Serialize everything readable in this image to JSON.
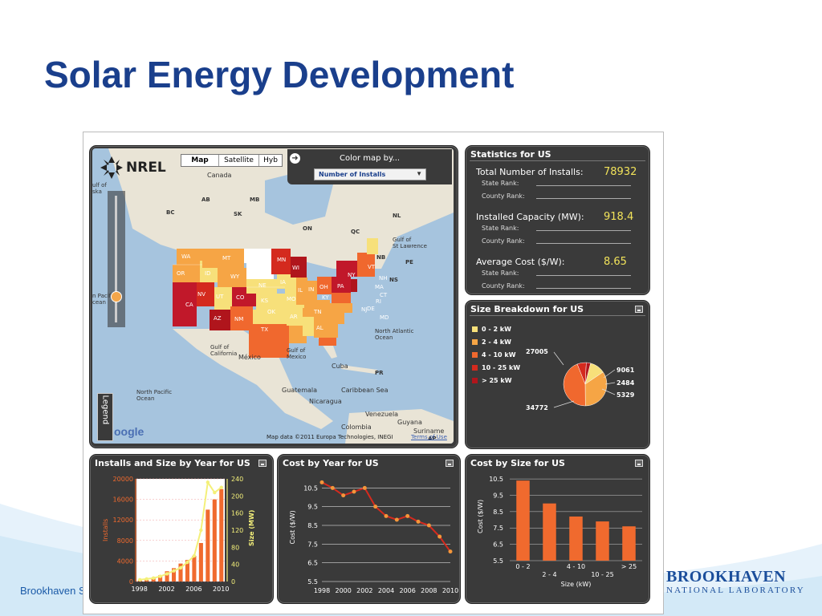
{
  "slide": {
    "title": "Solar Energy Development",
    "footer_left": "Brookhaven S",
    "logo_line1": "BROOKHAVEN",
    "logo_line2": "NATIONAL LABORATORY"
  },
  "map": {
    "tabs": [
      "Map",
      "Satellite",
      "Hyb"
    ],
    "active_tab": "Map",
    "color_by_label": "Color map by...",
    "color_by_value": "Number of Installs",
    "nrel_label": "NREL",
    "legend_label": "Legend",
    "google_label": "oogle",
    "copyright": "Map data ©2011  Europa Technologies, INEGI",
    "terms": "Terms of Use",
    "place_labels": [
      "Canada",
      "AB",
      "MB",
      "BC",
      "SK",
      "ON",
      "QC",
      "NL",
      "NB",
      "PE",
      "NS",
      "Gulf of St Lawrence",
      "North Atlantic Ocean",
      "Gulf of California",
      "México",
      "Gulf of Mexico",
      "Cuba",
      "PR",
      "Guatemala",
      "Caribbean Sea",
      "Nicaragua",
      "North Pacific Ocean",
      "Venezuela",
      "Guyana",
      "Colombia",
      "Suriname",
      "AP",
      "n Pacific cean",
      "ulf of ska"
    ],
    "state_labels": [
      "WA",
      "MT",
      "ND",
      "MN",
      "OR",
      "ID",
      "WY",
      "SD",
      "WI",
      "NV",
      "UT",
      "CO",
      "NE",
      "IA",
      "CA",
      "AZ",
      "NM",
      "KS",
      "MO",
      "OK",
      "TX",
      "AR",
      "AL",
      "IL",
      "IN",
      "OH",
      "PA",
      "NY",
      "VT",
      "NH",
      "MA",
      "CT",
      "RI",
      "NJ",
      "DE",
      "MD",
      "TN",
      "KY"
    ]
  },
  "statistics": {
    "title": "Statistics for US",
    "rows": [
      {
        "label": "Total Number of Installs:",
        "value": "78932",
        "sub1": "State Rank:",
        "sub2": "County Rank:"
      },
      {
        "label": "Installed Capacity (MW):",
        "value": "918.4",
        "sub1": "State Rank:",
        "sub2": "County Rank:"
      },
      {
        "label": "Average Cost ($/W):",
        "value": "8.65",
        "sub1": "State Rank:",
        "sub2": "County Rank:"
      }
    ]
  },
  "size_breakdown": {
    "title": "Size Breakdown for US",
    "legend": [
      {
        "label": "0 - 2 kW",
        "color": "#f7e07a"
      },
      {
        "label": "2 - 4 kW",
        "color": "#f6a545"
      },
      {
        "label": "4 - 10 kW",
        "color": "#f0682e"
      },
      {
        "label": "10 - 25 kW",
        "color": "#d42a1e"
      },
      {
        "label": "> 25 kW",
        "color": "#b0151c"
      }
    ],
    "labels": [
      "27005",
      "9061",
      "2484",
      "5329",
      "34772"
    ]
  },
  "colors": {
    "title": "#1a3f8c",
    "panel": "#3a3a3a",
    "value_yellow": "#f2e35a",
    "bar_orange": "#f06a2e",
    "line_yellow": "#f4f07a"
  },
  "chart_data": [
    {
      "id": "installs-size-by-year",
      "type": "bar",
      "title": "Installs and Size by Year for  US",
      "ylabel": "Installs",
      "y2label": "Size (MW)",
      "x_ticks": [
        "1998",
        "2002",
        "2006",
        "2010"
      ],
      "y_ticks": [
        "0",
        "4000",
        "8000",
        "12000",
        "16000",
        "20000"
      ],
      "y2_ticks": [
        "0",
        "40",
        "80",
        "120",
        "160",
        "200",
        "240"
      ],
      "ylim": [
        0,
        20000
      ],
      "y2lim": [
        0,
        240
      ],
      "categories": [
        "1998",
        "1999",
        "2000",
        "2001",
        "2002",
        "2003",
        "2004",
        "2005",
        "2006",
        "2007",
        "2008",
        "2009",
        "2010"
      ],
      "series": [
        {
          "name": "Installs",
          "type": "bar",
          "values": [
            200,
            300,
            600,
            1200,
            2000,
            2600,
            3500,
            4200,
            5000,
            7500,
            14000,
            16000,
            18000
          ]
        },
        {
          "name": "Size (MW)",
          "type": "line",
          "axis": "y2",
          "values": [
            4,
            6,
            8,
            12,
            18,
            25,
            32,
            45,
            60,
            120,
            232,
            208,
            220
          ]
        }
      ]
    },
    {
      "id": "cost-by-year",
      "type": "line",
      "title": "Cost by Year for US",
      "ylabel": "Cost ($/W)",
      "x": [
        "1998",
        "1999",
        "2000",
        "2001",
        "2002",
        "2003",
        "2004",
        "2005",
        "2006",
        "2007",
        "2008",
        "2009",
        "2010"
      ],
      "x_ticks": [
        "1998",
        "2000",
        "2002",
        "2004",
        "2006",
        "2008",
        "2010"
      ],
      "y_ticks": [
        "5.5",
        "6.5",
        "7.5",
        "8.5",
        "9.5",
        "10.5"
      ],
      "ylim": [
        5.5,
        11.2
      ],
      "values": [
        10.8,
        10.5,
        10.1,
        10.3,
        10.5,
        9.5,
        9.0,
        8.8,
        9.0,
        8.7,
        8.5,
        7.9,
        7.1
      ]
    },
    {
      "id": "cost-by-size",
      "type": "bar",
      "title": "Cost by Size for US",
      "ylabel": "Cost ($/W)",
      "xlabel": "Size (kW)",
      "categories": [
        "0 - 2",
        "2 - 4",
        "4 - 10",
        "10 - 25",
        "> 25"
      ],
      "y_ticks": [
        "5.5",
        "6.5",
        "7.5",
        "8.5",
        "9.5",
        "10.5"
      ],
      "ylim": [
        5.5,
        10.8
      ],
      "values": [
        10.4,
        9.0,
        8.2,
        7.9,
        7.6
      ]
    },
    {
      "id": "size-breakdown-pie",
      "type": "pie",
      "categories": [
        "0 - 2 kW",
        "2 - 4 kW",
        "4 - 10 kW",
        "10 - 25 kW",
        "> 25 kW"
      ],
      "values": [
        9061,
        27005,
        34772,
        5329,
        2484
      ]
    }
  ]
}
